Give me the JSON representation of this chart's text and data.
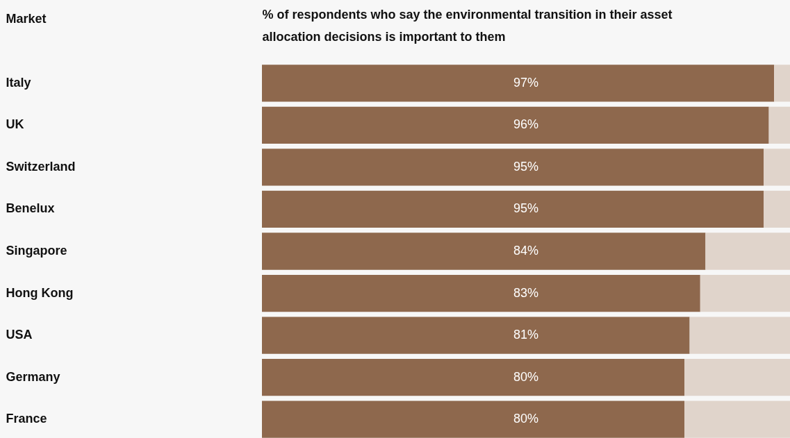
{
  "chart_data": {
    "type": "bar",
    "orientation": "horizontal",
    "stacked": true,
    "title": "% of respondents who say the environmental transition in their asset allocation decisions is important to them",
    "ylabel": "Market",
    "categories": [
      "Italy",
      "UK",
      "Switzerland",
      "Benelux",
      "Singapore",
      "Hong Kong",
      "USA",
      "Germany",
      "France"
    ],
    "xlim": [
      0,
      100
    ],
    "series": [
      {
        "color": "#8e684d",
        "values": [
          97,
          96,
          95,
          95,
          84,
          83,
          81,
          80,
          80
        ],
        "value_labels": [
          "97%",
          "96%",
          "95%",
          "95%",
          "84%",
          "83%",
          "81%",
          "80%",
          "80%"
        ]
      },
      {
        "color": "#e0d4cb",
        "values": [
          3,
          4,
          5,
          5,
          16,
          17,
          19,
          20,
          20
        ]
      }
    ],
    "tick_labels": "y"
  }
}
